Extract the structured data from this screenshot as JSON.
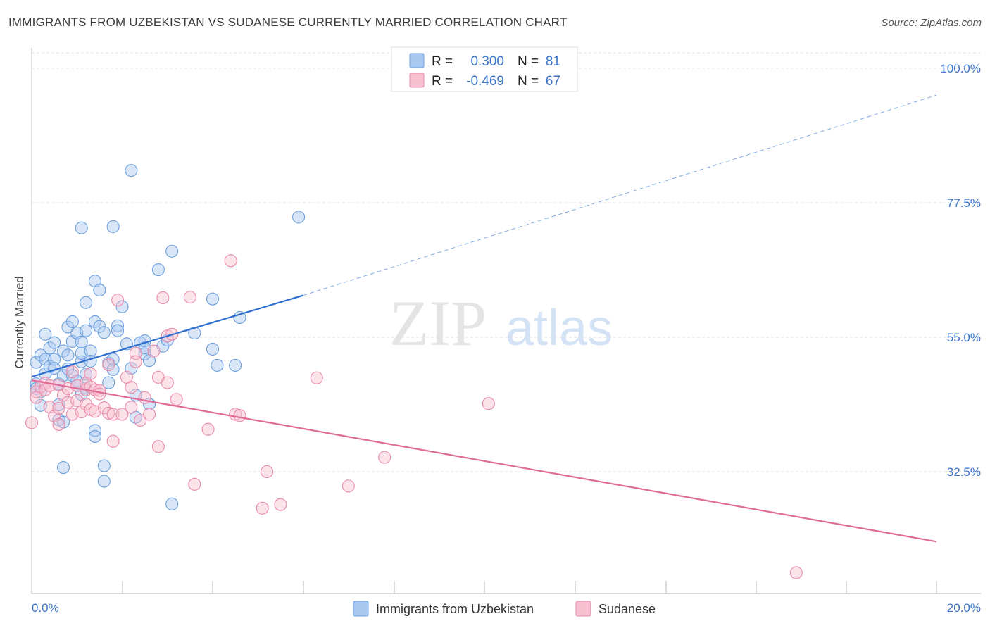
{
  "title": "IMMIGRANTS FROM UZBEKISTAN VS SUDANESE CURRENTLY MARRIED CORRELATION CHART",
  "source": "Source: ZipAtlas.com",
  "watermark": {
    "zip": "ZIP",
    "atlas": "atlas"
  },
  "legend": {
    "r_label": "R =",
    "n_label": "N =",
    "rows": [
      {
        "r": "0.300",
        "n": "81",
        "color": "#a9c8f0",
        "stroke": "#6c9fdc"
      },
      {
        "r": "-0.469",
        "n": "67",
        "color": "#f8c0d0",
        "stroke": "#e88aa8"
      }
    ]
  },
  "bottom_legend": [
    {
      "label": "Immigrants from Uzbekistan",
      "color": "#a9c8f0",
      "stroke": "#6c9fdc"
    },
    {
      "label": "Sudanese",
      "color": "#f8c0d0",
      "stroke": "#e88aa8"
    }
  ],
  "chart_data": {
    "type": "scatter",
    "title": "IMMIGRANTS FROM UZBEKISTAN VS SUDANESE CURRENTLY MARRIED CORRELATION CHART",
    "xlabel": "",
    "ylabel": "Currently Married",
    "xlim": [
      0,
      20
    ],
    "ylim": [
      10,
      105
    ],
    "y_ticks": [
      32.5,
      55.0,
      77.5,
      100.0
    ],
    "y_tick_labels": [
      "32.5%",
      "55.0%",
      "77.5%",
      "100.0%"
    ],
    "x_tick_labels": [
      "0.0%",
      "20.0%"
    ],
    "grid": true,
    "legend_position": "top-center",
    "series": [
      {
        "name": "Immigrants from Uzbekistan",
        "color": "#6c9fdc",
        "fill": "#a9c8f0",
        "trend": {
          "x": [
            0,
            6
          ],
          "y": [
            48.4,
            62.0
          ],
          "dashed_to": [
            20,
            95.5
          ],
          "color": "#2f6fd0"
        },
        "points": [
          [
            0.1,
            47.2
          ],
          [
            0.1,
            50.8
          ],
          [
            0.1,
            46.4
          ],
          [
            0.2,
            43.6
          ],
          [
            0.2,
            52.0
          ],
          [
            0.3,
            48.9
          ],
          [
            0.3,
            51.3
          ],
          [
            0.3,
            55.5
          ],
          [
            0.4,
            53.2
          ],
          [
            0.4,
            50.1
          ],
          [
            0.5,
            51.3
          ],
          [
            0.5,
            49.8
          ],
          [
            0.5,
            54.1
          ],
          [
            0.6,
            47.2
          ],
          [
            0.6,
            43.7
          ],
          [
            0.6,
            41.2
          ],
          [
            0.7,
            48.6
          ],
          [
            0.7,
            52.7
          ],
          [
            0.7,
            40.8
          ],
          [
            0.7,
            33.2
          ],
          [
            0.8,
            56.7
          ],
          [
            0.8,
            49.7
          ],
          [
            0.8,
            52.0
          ],
          [
            0.9,
            48.6
          ],
          [
            0.9,
            57.6
          ],
          [
            0.9,
            54.3
          ],
          [
            1.0,
            47.7
          ],
          [
            1.0,
            46.9
          ],
          [
            1.1,
            50.9
          ],
          [
            1.1,
            52.3
          ],
          [
            1.0,
            55.7
          ],
          [
            1.1,
            54.2
          ],
          [
            1.1,
            45.4
          ],
          [
            1.1,
            73.3
          ],
          [
            1.2,
            60.8
          ],
          [
            1.2,
            56.1
          ],
          [
            1.2,
            48.8
          ],
          [
            1.2,
            46.5
          ],
          [
            1.3,
            52.7
          ],
          [
            1.3,
            51.0
          ],
          [
            1.4,
            39.4
          ],
          [
            1.4,
            57.6
          ],
          [
            1.4,
            64.4
          ],
          [
            1.5,
            62.9
          ],
          [
            1.4,
            38.4
          ],
          [
            1.5,
            56.8
          ],
          [
            1.6,
            55.8
          ],
          [
            1.6,
            33.5
          ],
          [
            1.6,
            30.9
          ],
          [
            1.7,
            47.4
          ],
          [
            1.7,
            50.7
          ],
          [
            1.8,
            49.6
          ],
          [
            1.8,
            73.5
          ],
          [
            1.8,
            51.3
          ],
          [
            1.9,
            56.9
          ],
          [
            1.9,
            56.1
          ],
          [
            2.0,
            60.1
          ],
          [
            2.1,
            53.9
          ],
          [
            2.2,
            82.9
          ],
          [
            2.2,
            49.8
          ],
          [
            2.3,
            45.3
          ],
          [
            2.3,
            41.6
          ],
          [
            2.4,
            54.1
          ],
          [
            2.5,
            54.4
          ],
          [
            2.5,
            52.2
          ],
          [
            2.5,
            53.2
          ],
          [
            2.6,
            51.1
          ],
          [
            2.6,
            43.8
          ],
          [
            2.8,
            66.3
          ],
          [
            2.9,
            53.5
          ],
          [
            3.0,
            54.5
          ],
          [
            3.1,
            27.1
          ],
          [
            3.1,
            69.4
          ],
          [
            3.6,
            55.7
          ],
          [
            4.0,
            53.0
          ],
          [
            4.0,
            61.4
          ],
          [
            4.1,
            50.3
          ],
          [
            4.5,
            50.3
          ],
          [
            4.6,
            58.3
          ],
          [
            5.9,
            75.1
          ],
          [
            0.2,
            45.9
          ]
        ]
      },
      {
        "name": "Sudanese",
        "color": "#e88aa8",
        "fill": "#f8c0d0",
        "trend": {
          "x": [
            0,
            20
          ],
          "y": [
            47.8,
            20.8
          ],
          "color": "#e06b97"
        },
        "points": [
          [
            0.0,
            40.7
          ],
          [
            0.1,
            45.9
          ],
          [
            0.1,
            44.9
          ],
          [
            0.2,
            46.7
          ],
          [
            0.3,
            47.3
          ],
          [
            0.3,
            46.2
          ],
          [
            0.4,
            43.3
          ],
          [
            0.4,
            46.9
          ],
          [
            0.5,
            41.8
          ],
          [
            0.6,
            47.0
          ],
          [
            0.6,
            43.1
          ],
          [
            0.6,
            40.4
          ],
          [
            0.7,
            45.3
          ],
          [
            0.8,
            44.1
          ],
          [
            0.8,
            46.4
          ],
          [
            0.9,
            42.1
          ],
          [
            0.9,
            49.2
          ],
          [
            1.0,
            46.9
          ],
          [
            1.0,
            44.4
          ],
          [
            1.1,
            42.5
          ],
          [
            1.2,
            43.8
          ],
          [
            1.2,
            46.2
          ],
          [
            1.2,
            47.3
          ],
          [
            1.3,
            48.9
          ],
          [
            1.3,
            42.9
          ],
          [
            1.3,
            46.7
          ],
          [
            1.4,
            42.6
          ],
          [
            1.4,
            46.2
          ],
          [
            1.5,
            46.1
          ],
          [
            1.5,
            45.5
          ],
          [
            1.6,
            43.2
          ],
          [
            1.7,
            42.3
          ],
          [
            1.7,
            50.4
          ],
          [
            1.8,
            37.6
          ],
          [
            1.8,
            42.1
          ],
          [
            1.9,
            61.2
          ],
          [
            2.0,
            42.1
          ],
          [
            2.1,
            48.3
          ],
          [
            2.2,
            46.6
          ],
          [
            2.2,
            43.3
          ],
          [
            2.3,
            52.3
          ],
          [
            2.3,
            50.9
          ],
          [
            2.4,
            41.1
          ],
          [
            2.5,
            44.9
          ],
          [
            2.6,
            42.1
          ],
          [
            2.7,
            52.7
          ],
          [
            2.8,
            36.7
          ],
          [
            2.8,
            48.3
          ],
          [
            2.9,
            61.6
          ],
          [
            3.0,
            47.4
          ],
          [
            3.0,
            55.2
          ],
          [
            3.1,
            55.5
          ],
          [
            3.2,
            44.6
          ],
          [
            3.5,
            61.7
          ],
          [
            3.6,
            30.4
          ],
          [
            3.9,
            39.6
          ],
          [
            4.4,
            67.8
          ],
          [
            4.5,
            42.1
          ],
          [
            4.6,
            41.9
          ],
          [
            5.1,
            26.4
          ],
          [
            5.2,
            32.5
          ],
          [
            5.5,
            27.0
          ],
          [
            6.3,
            48.2
          ],
          [
            7.0,
            30.1
          ],
          [
            7.8,
            34.9
          ],
          [
            10.1,
            43.9
          ],
          [
            16.9,
            15.6
          ]
        ]
      }
    ]
  }
}
